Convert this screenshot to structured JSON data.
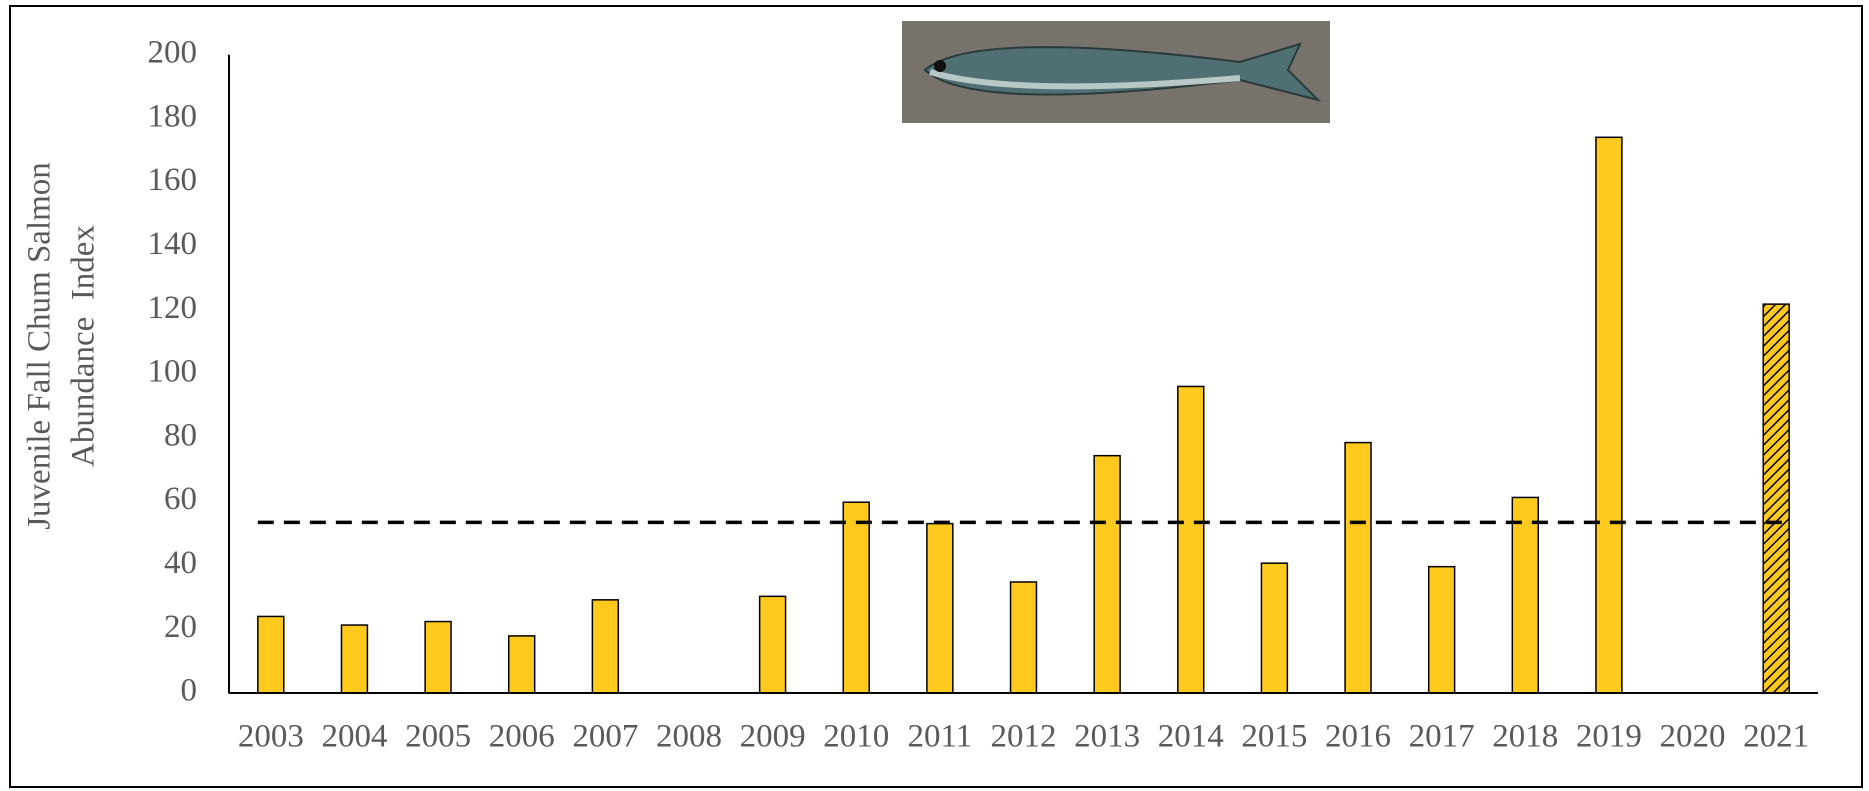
{
  "chart_data": {
    "type": "bar",
    "y_label": [
      "Juvenile Fall Chum Salmon",
      "Abundance  Index"
    ],
    "categories": [
      "2003",
      "2004",
      "2005",
      "2006",
      "2007",
      "2008",
      "2009",
      "2010",
      "2011",
      "2012",
      "2013",
      "2014",
      "2015",
      "2016",
      "2017",
      "2018",
      "2019",
      "2020",
      "2021"
    ],
    "values": [
      24,
      21.3,
      22.4,
      17.9,
      29.2,
      null,
      30.3,
      59.8,
      53.1,
      34.8,
      74.4,
      96.1,
      40.7,
      78.5,
      39.6,
      61.3,
      174.2,
      null,
      121.9
    ],
    "hatched": [
      false,
      false,
      false,
      false,
      false,
      false,
      false,
      false,
      false,
      false,
      false,
      false,
      false,
      false,
      false,
      false,
      false,
      false,
      true
    ],
    "color": "#ffc91d",
    "reference_line": {
      "value": 53.5,
      "style": "dashed",
      "color": "#000000"
    },
    "ylim": [
      0,
      200
    ],
    "yticks": [
      0,
      20,
      40,
      60,
      80,
      100,
      120,
      140,
      160,
      180,
      200
    ],
    "grid": false
  }
}
